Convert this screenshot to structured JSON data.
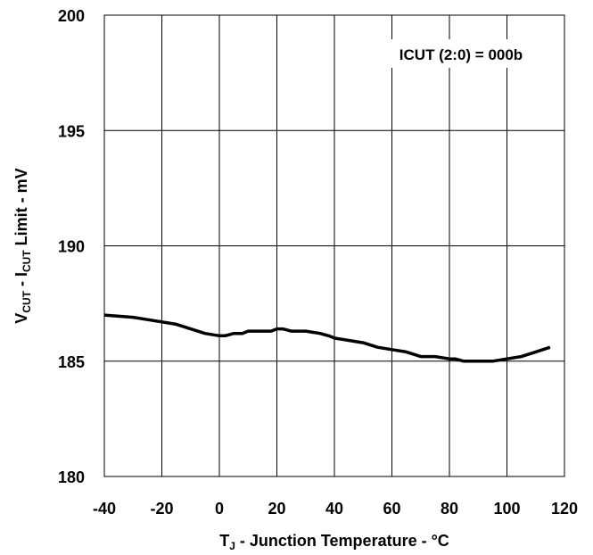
{
  "chart_data": {
    "type": "line",
    "title": "",
    "xlabel": {
      "main": "T",
      "sub": "J",
      "rest": " - Junction Temperature - °C"
    },
    "ylabel": {
      "v": "V",
      "v_sub": "CUT",
      "mid": " - I",
      "i_sub": "CUT",
      "rest": " Limit - mV"
    },
    "xlim": [
      -40,
      120
    ],
    "ylim": [
      180,
      200
    ],
    "x_ticks": [
      -40,
      -20,
      0,
      20,
      40,
      60,
      80,
      100,
      120
    ],
    "y_ticks": [
      180,
      185,
      190,
      195,
      200
    ],
    "grid": true,
    "annotation": "ICUT (2:0) = 000b",
    "series": [
      {
        "x": [
          -40,
          -30,
          -25,
          -15,
          -5,
          0,
          2,
          5,
          8,
          10,
          15,
          18,
          20,
          22,
          25,
          30,
          35,
          38,
          40,
          45,
          50,
          55,
          60,
          65,
          70,
          75,
          80,
          82,
          85,
          90,
          95,
          100,
          105,
          110,
          115
        ],
        "y": [
          187.0,
          186.9,
          186.8,
          186.6,
          186.2,
          186.1,
          186.1,
          186.2,
          186.2,
          186.3,
          186.3,
          186.3,
          186.4,
          186.4,
          186.3,
          186.3,
          186.2,
          186.1,
          186.0,
          185.9,
          185.8,
          185.6,
          185.5,
          185.4,
          185.2,
          185.2,
          185.1,
          185.1,
          185.0,
          185.0,
          185.0,
          185.1,
          185.2,
          185.4,
          185.6
        ],
        "color": "#000000"
      }
    ]
  }
}
